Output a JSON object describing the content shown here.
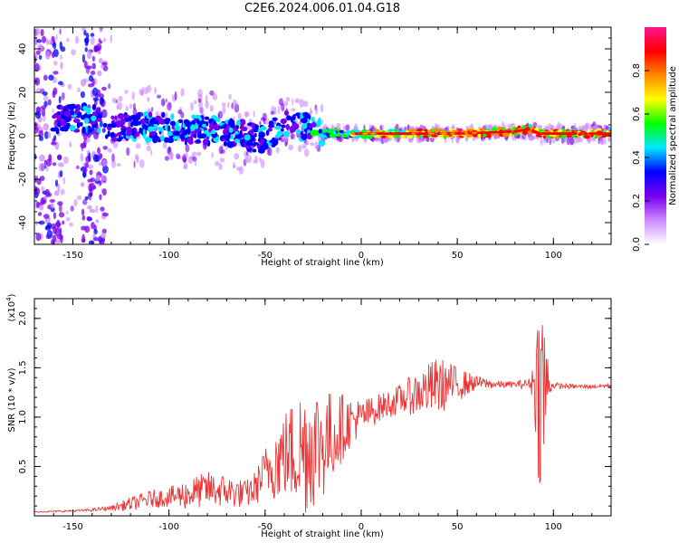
{
  "title": "C2E6.2024.006.01.04.G18",
  "colorbar": {
    "label": "Normalized spectral amplitude",
    "ticks": [
      "0.0",
      "0.2",
      "0.4",
      "0.6",
      "0.8"
    ],
    "tick_values": [
      0.0,
      0.2,
      0.4,
      0.6,
      0.8
    ],
    "range": [
      0.0,
      1.0
    ],
    "colors": [
      "#ffffff",
      "#cc88ff",
      "#7700ee",
      "#0000ff",
      "#00e8ff",
      "#00ff00",
      "#ffff00",
      "#ff8800",
      "#ff0000",
      "#ff1493"
    ]
  },
  "chart_data": [
    {
      "type": "heatmap",
      "xlabel": "Height of straight line (km)",
      "ylabel": "Frequency (Hz)",
      "xlim": [
        -170,
        130
      ],
      "ylim": [
        -50,
        50
      ],
      "xticks": [
        -150,
        -100,
        -50,
        0,
        50,
        100
      ],
      "xtick_labels": [
        "-150",
        "-100",
        "-50",
        "0",
        "50",
        "100"
      ],
      "yticks": [
        -40,
        -20,
        0,
        20,
        40
      ],
      "ytick_labels": [
        "-40",
        "-20",
        "0",
        "20",
        "40"
      ],
      "ridge": {
        "x": [
          -160,
          -140,
          -130,
          -110,
          -90,
          -70,
          -50,
          -40,
          -30,
          -20,
          -10,
          0,
          20,
          50,
          80,
          88,
          92,
          100,
          130
        ],
        "y": [
          8,
          8,
          4,
          4,
          3,
          2,
          -2,
          6,
          4,
          1,
          1,
          1,
          1,
          1,
          2,
          3,
          1,
          1,
          1
        ],
        "amplitude": [
          0.35,
          0.4,
          0.35,
          0.4,
          0.4,
          0.4,
          0.38,
          0.4,
          0.42,
          0.5,
          0.55,
          0.7,
          0.85,
          0.88,
          0.9,
          0.85,
          0.8,
          0.85,
          0.85
        ]
      }
    },
    {
      "type": "line",
      "xlabel": "Height of straight line (km)",
      "ylabel": "SNR (10 * v/v)",
      "multiplier_label": "(x10",
      "multiplier_exponent": "4",
      "xlim": [
        -170,
        130
      ],
      "ylim": [
        0,
        22000
      ],
      "xticks": [
        -150,
        -100,
        -50,
        0,
        50,
        100
      ],
      "xtick_labels": [
        "-150",
        "-100",
        "-50",
        "0",
        "50",
        "100"
      ],
      "yticks": [
        5000,
        10000,
        15000,
        20000
      ],
      "ytick_labels": [
        "0.5",
        "1.0",
        "1.5",
        "2.0"
      ],
      "color": "#ee3333",
      "series": [
        {
          "x": [
            -170,
            -150,
            -140,
            -130,
            -120,
            -110,
            -100,
            -90,
            -80,
            -70,
            -60,
            -55,
            -50,
            -45,
            -40,
            -35,
            -30,
            -25,
            -20,
            -15,
            -10,
            -5,
            0,
            10,
            20,
            30,
            40,
            50,
            60,
            70,
            80,
            88,
            90,
            92,
            94,
            96,
            98,
            100,
            110,
            120,
            130
          ],
          "y": [
            400,
            500,
            600,
            800,
            1200,
            1700,
            1900,
            2200,
            2700,
            2500,
            2200,
            2800,
            4500,
            5500,
            6200,
            6500,
            6800,
            7200,
            7500,
            8000,
            9000,
            9600,
            10000,
            11000,
            11800,
            12500,
            13200,
            13300,
            13500,
            13300,
            13300,
            13400,
            13600,
            13000,
            12800,
            12900,
            13300,
            13200,
            13100,
            13100,
            13200
          ],
          "noise_amplitude": [
            60,
            100,
            150,
            250,
            700,
            900,
            1000,
            1600,
            1800,
            1700,
            1400,
            1800,
            2500,
            4000,
            4500,
            5500,
            7000,
            6500,
            6000,
            4500,
            3500,
            2500,
            1800,
            1400,
            1500,
            2300,
            3000,
            1800,
            700,
            400,
            300,
            600,
            3000,
            9000,
            11000,
            7000,
            1200,
            300,
            250,
            200,
            200
          ]
        }
      ]
    }
  ]
}
